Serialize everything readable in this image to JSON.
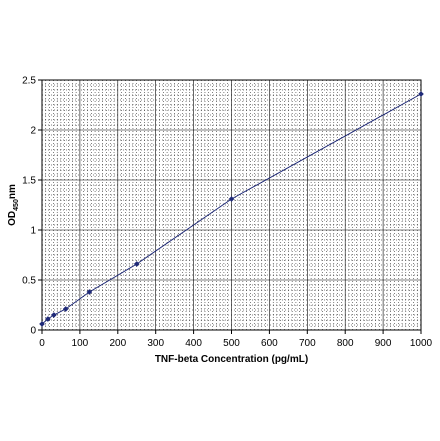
{
  "chart_data": {
    "type": "scatter",
    "xlabel": "TNF-beta Concentration (pg/mL)",
    "ylabel_main": "OD",
    "ylabel_sub": "450",
    "ylabel_unit": "nm",
    "xlim": [
      0,
      1000
    ],
    "ylim": [
      0,
      2.5
    ],
    "x_ticks": [
      0,
      100,
      200,
      300,
      400,
      500,
      600,
      700,
      800,
      900,
      1000
    ],
    "y_ticks": [
      0,
      0.5,
      1,
      1.5,
      2,
      2.5
    ],
    "x_tick_labels": [
      "0",
      "100",
      "200",
      "300",
      "400",
      "500",
      "600",
      "700",
      "800",
      "900",
      "1000"
    ],
    "y_tick_labels": [
      "0",
      "0.5",
      "1",
      "1.5",
      "2",
      "2.5"
    ],
    "grid": true,
    "series": [
      {
        "color": "#1f2a78",
        "x": [
          0,
          15.6,
          31.3,
          62.5,
          125,
          250,
          500,
          1000
        ],
        "y": [
          0.06,
          0.11,
          0.15,
          0.21,
          0.38,
          0.66,
          1.31,
          2.36
        ]
      }
    ]
  }
}
